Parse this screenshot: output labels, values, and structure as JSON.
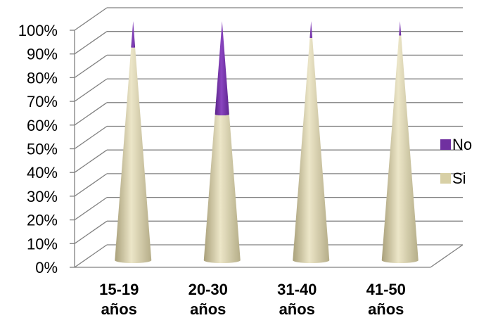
{
  "chart_data": {
    "type": "bar",
    "style": "3d-stacked-percent-cone",
    "categories": [
      "15-19 años",
      "20-30 años",
      "31-40 años",
      "41-50 años"
    ],
    "category_lines": [
      [
        "15-19",
        "años"
      ],
      [
        "20-30",
        "años"
      ],
      [
        "31-40",
        "años"
      ],
      [
        "41-50",
        "años"
      ]
    ],
    "series": [
      {
        "name": "Si",
        "values": [
          89,
          61,
          93,
          94
        ],
        "color": "#d8d0a6"
      },
      {
        "name": "No",
        "values": [
          11,
          39,
          7,
          6
        ],
        "color": "#7030a0"
      }
    ],
    "yticks": [
      "0%",
      "10%",
      "20%",
      "30%",
      "40%",
      "50%",
      "60%",
      "70%",
      "80%",
      "90%",
      "100%"
    ],
    "ylim": [
      0,
      100
    ],
    "grid": true,
    "legend_position": "right",
    "legend_order": [
      "No",
      "Si"
    ]
  }
}
